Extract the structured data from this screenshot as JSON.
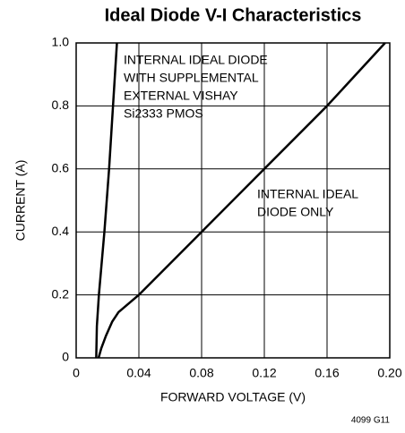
{
  "chart_data": {
    "type": "line",
    "title": "Ideal Diode V-I Characteristics",
    "xlabel": "FORWARD VOLTAGE (V)",
    "ylabel": "CURRENT (A)",
    "xlim": [
      0,
      0.2
    ],
    "ylim": [
      0,
      1
    ],
    "xticks": [
      0,
      0.04,
      0.08,
      0.12,
      0.16,
      {
        "value": 0.2,
        "label": "0.20"
      }
    ],
    "yticks": [
      0,
      0.2,
      0.4,
      0.6,
      0.8,
      {
        "value": 1,
        "label": "1.0"
      }
    ],
    "grid": true,
    "series": [
      {
        "color": "#000000",
        "x": [
          0.0128,
          0.0132,
          0.0145,
          0.018,
          0.021,
          0.0235,
          0.026
        ],
        "values": [
          0,
          0.1,
          0.2,
          0.4,
          0.6,
          0.8,
          1.0
        ]
      },
      {
        "color": "#000000",
        "x": [
          0.0143,
          0.016,
          0.019,
          0.023,
          0.027,
          0.04,
          0.08,
          0.12,
          0.16,
          0.197
        ],
        "values": [
          0,
          0.03,
          0.07,
          0.115,
          0.145,
          0.2,
          0.4,
          0.6,
          0.8,
          1.0
        ]
      }
    ],
    "annotations": [
      [
        "INTERNAL IDEAL DIODE",
        "WITH SUPPLEMENTAL",
        "EXTERNAL VISHAY",
        "Si2333 PMOS"
      ],
      [
        "INTERNAL IDEAL",
        "DIODE ONLY"
      ]
    ],
    "footnote": "4099 G11"
  }
}
